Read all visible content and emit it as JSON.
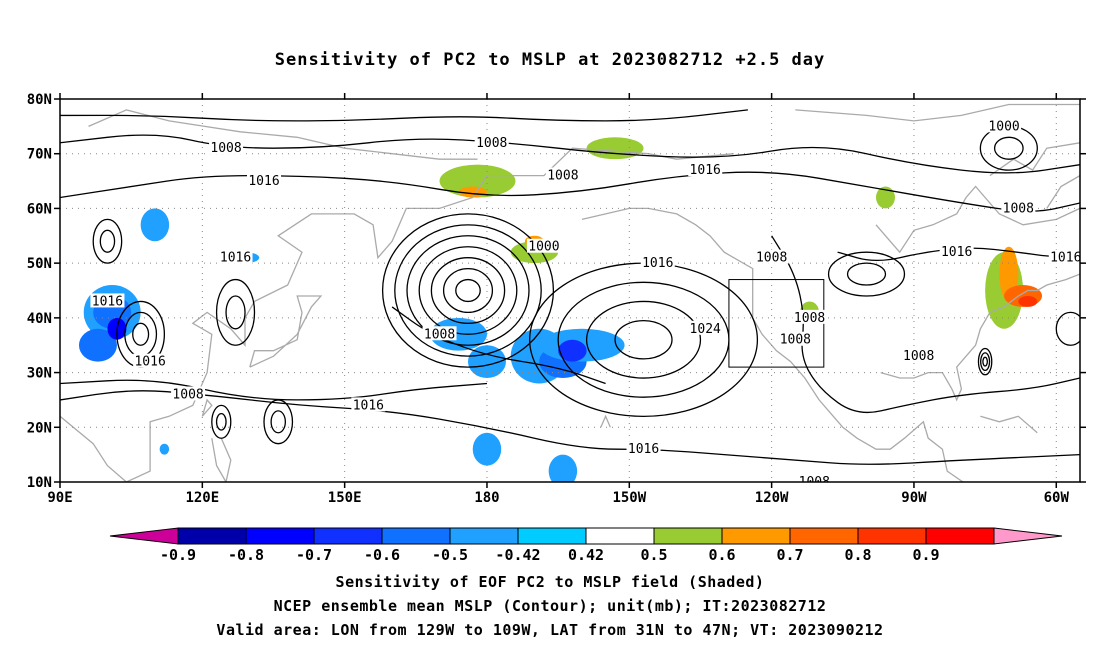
{
  "title": "Sensitivity of PC2 to MSLP at 2023082712 +2.5 day",
  "map": {
    "lon_min": 90,
    "lon_max": 305,
    "lat_min": 10,
    "lat_max": 80,
    "lat_labels": [
      {
        "lat": 80,
        "label": "80N"
      },
      {
        "lat": 70,
        "label": "70N"
      },
      {
        "lat": 60,
        "label": "60N"
      },
      {
        "lat": 50,
        "label": "50N"
      },
      {
        "lat": 40,
        "label": "40N"
      },
      {
        "lat": 30,
        "label": "30N"
      },
      {
        "lat": 20,
        "label": "20N"
      },
      {
        "lat": 10,
        "label": "10N"
      }
    ],
    "lon_labels": [
      {
        "lon": 90,
        "label": "90E"
      },
      {
        "lon": 120,
        "label": "120E"
      },
      {
        "lon": 150,
        "label": "150E"
      },
      {
        "lon": 180,
        "label": "180"
      },
      {
        "lon": 210,
        "label": "150W"
      },
      {
        "lon": 240,
        "label": "120W"
      },
      {
        "lon": 270,
        "label": "90W"
      },
      {
        "lon": 300,
        "label": "60W"
      }
    ],
    "valid_box": {
      "lon_w": 231,
      "lon_e": 251,
      "lat_s": 31,
      "lat_n": 47
    },
    "contour_labels": [
      {
        "text": "1008",
        "lon": 125,
        "lat": 71
      },
      {
        "text": "1016",
        "lon": 133,
        "lat": 65
      },
      {
        "text": "1008",
        "lon": 181,
        "lat": 72
      },
      {
        "text": "1008",
        "lon": 196,
        "lat": 66
      },
      {
        "text": "1016",
        "lon": 226,
        "lat": 67
      },
      {
        "text": "1000",
        "lon": 289,
        "lat": 75
      },
      {
        "text": "1008",
        "lon": 292,
        "lat": 60
      },
      {
        "text": "1016",
        "lon": 279,
        "lat": 52
      },
      {
        "text": "1016",
        "lon": 302,
        "lat": 51
      },
      {
        "text": "1016",
        "lon": 127,
        "lat": 51
      },
      {
        "text": "1000",
        "lon": 192,
        "lat": 53
      },
      {
        "text": "1008",
        "lon": 240,
        "lat": 51
      },
      {
        "text": "1016",
        "lon": 216,
        "lat": 50
      },
      {
        "text": "1024",
        "lon": 226,
        "lat": 38
      },
      {
        "text": "1016",
        "lon": 100,
        "lat": 43
      },
      {
        "text": "1016",
        "lon": 109,
        "lat": 32
      },
      {
        "text": "1008",
        "lon": 117,
        "lat": 26
      },
      {
        "text": "1016",
        "lon": 155,
        "lat": 24
      },
      {
        "text": "1008",
        "lon": 170,
        "lat": 37
      },
      {
        "text": "1008",
        "lon": 248,
        "lat": 40
      },
      {
        "text": "1008",
        "lon": 245,
        "lat": 36
      },
      {
        "text": "1008",
        "lon": 271,
        "lat": 33
      },
      {
        "text": "1016",
        "lon": 213,
        "lat": 16
      },
      {
        "text": "1008",
        "lon": 249,
        "lat": 10
      }
    ],
    "shaded_features": [
      {
        "lon": 110,
        "lat": 57,
        "rx": 3,
        "ry": 3,
        "value": -0.5
      },
      {
        "lon": 101,
        "lat": 41,
        "rx": 6,
        "ry": 5,
        "value": -0.5
      },
      {
        "lon": 101,
        "lat": 41,
        "rx": 4,
        "ry": 3,
        "value": -0.6
      },
      {
        "lon": 98,
        "lat": 35,
        "rx": 4,
        "ry": 3,
        "value": -0.6
      },
      {
        "lon": 102,
        "lat": 38,
        "rx": 2,
        "ry": 2,
        "value": -0.8
      },
      {
        "lon": 129,
        "lat": 51,
        "rx": 3,
        "ry": 1,
        "value": -0.5
      },
      {
        "lon": 174,
        "lat": 37,
        "rx": 6,
        "ry": 3,
        "value": -0.5
      },
      {
        "lon": 180,
        "lat": 32,
        "rx": 4,
        "ry": 3,
        "value": -0.5
      },
      {
        "lon": 191,
        "lat": 33,
        "rx": 6,
        "ry": 5,
        "value": -0.5
      },
      {
        "lon": 196,
        "lat": 32,
        "rx": 5,
        "ry": 3,
        "value": -0.6
      },
      {
        "lon": 200,
        "lat": 35,
        "rx": 9,
        "ry": 3,
        "value": -0.5
      },
      {
        "lon": 198,
        "lat": 34,
        "rx": 3,
        "ry": 2,
        "value": -0.7
      },
      {
        "lon": 180,
        "lat": 16,
        "rx": 3,
        "ry": 3,
        "value": -0.5
      },
      {
        "lon": 196,
        "lat": 12,
        "rx": 3,
        "ry": 3,
        "value": -0.5
      },
      {
        "lon": 112,
        "lat": 16,
        "rx": 1,
        "ry": 1,
        "value": -0.5
      },
      {
        "lon": 178,
        "lat": 65,
        "rx": 8,
        "ry": 3,
        "value": 0.42
      },
      {
        "lon": 177,
        "lat": 63,
        "rx": 3,
        "ry": 1,
        "value": 0.5
      },
      {
        "lon": 190,
        "lat": 52,
        "rx": 5,
        "ry": 2,
        "value": 0.42
      },
      {
        "lon": 190,
        "lat": 54,
        "rx": 2,
        "ry": 1,
        "value": 0.5
      },
      {
        "lon": 207,
        "lat": 71,
        "rx": 6,
        "ry": 2,
        "value": 0.42
      },
      {
        "lon": 289,
        "lat": 45,
        "rx": 4,
        "ry": 7,
        "value": 0.42
      },
      {
        "lon": 290,
        "lat": 48,
        "rx": 2,
        "ry": 5,
        "value": 0.5
      },
      {
        "lon": 293,
        "lat": 44,
        "rx": 4,
        "ry": 2,
        "value": 0.6
      },
      {
        "lon": 294,
        "lat": 43,
        "rx": 2,
        "ry": 1,
        "value": 0.7
      },
      {
        "lon": 248,
        "lat": 41,
        "rx": 2,
        "ry": 2,
        "value": 0.42
      },
      {
        "lon": 264,
        "lat": 62,
        "rx": 2,
        "ry": 2,
        "value": 0.42
      }
    ]
  },
  "colorbar": {
    "bins": [
      {
        "color": "#cc0099"
      },
      {
        "color": "#0000aa"
      },
      {
        "color": "#0000ff"
      },
      {
        "color": "#1030ff"
      },
      {
        "color": "#1070ff"
      },
      {
        "color": "#20a0ff"
      },
      {
        "color": "#00ccff"
      },
      {
        "color": "#ffffff"
      },
      {
        "color": "#99cc33"
      },
      {
        "color": "#ff9900"
      },
      {
        "color": "#ff6600"
      },
      {
        "color": "#ff3300"
      },
      {
        "color": "#ff0000"
      },
      {
        "color": "#ff99cc"
      }
    ],
    "labels": [
      "-0.9",
      "-0.8",
      "-0.7",
      "-0.6",
      "-0.5",
      "-0.42",
      "0.42",
      "0.5",
      "0.6",
      "0.7",
      "0.8",
      "0.9"
    ]
  },
  "captions": [
    "Sensitivity of EOF PC2 to MSLP field (Shaded)",
    "NCEP ensemble mean MSLP (Contour); unit(mb); IT:2023082712",
    "Valid area: LON from 129W to 109W, LAT from 31N to 47N; VT: 2023090212"
  ]
}
